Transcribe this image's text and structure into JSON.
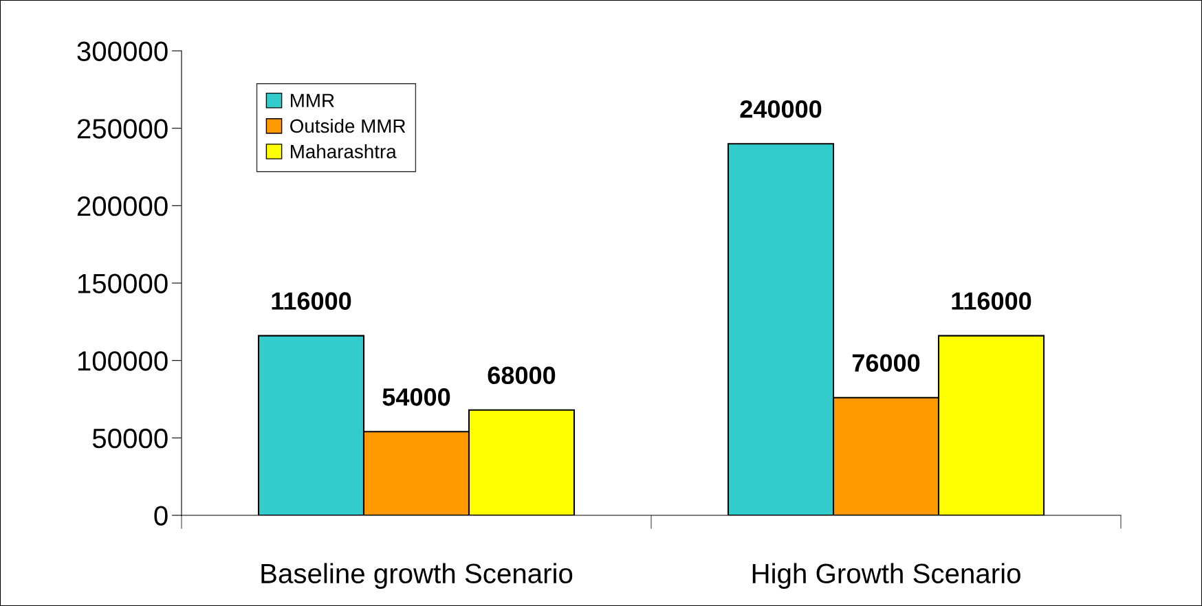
{
  "chart_data": {
    "type": "bar",
    "categories": [
      "Baseline growth Scenario",
      "High Growth Scenario"
    ],
    "series": [
      {
        "name": "MMR",
        "color": "#33cccc",
        "values": [
          116000,
          240000
        ]
      },
      {
        "name": "Outside MMR",
        "color": "#ff9900",
        "values": [
          54000,
          76000
        ]
      },
      {
        "name": "Maharashtra",
        "color": "#ffff00",
        "values": [
          68000,
          116000
        ]
      }
    ],
    "ylim": [
      0,
      300000
    ],
    "yticks": [
      0,
      50000,
      100000,
      150000,
      200000,
      250000,
      300000
    ],
    "data_labels": true,
    "grid": false,
    "legend": "top left"
  }
}
